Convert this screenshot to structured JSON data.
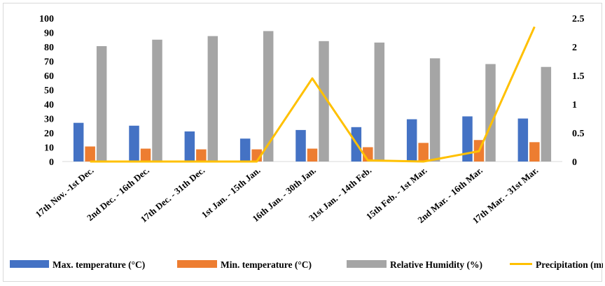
{
  "chart_data": {
    "type": "bar",
    "categories": [
      "17th Nov. -1st Dec.",
      "2nd Dec. - 16th Dec.",
      "17th Dec. - 31th Dec.",
      "1st Jan. - 15th Jan.",
      "16th Jan. - 30th Jan.",
      "31st Jan. - 14th Feb.",
      "15th Feb. - 1st Mar.",
      "2nd Mar. - 16th Mar.",
      "17th Mar. - 31st Mar."
    ],
    "series": [
      {
        "name": "Max. temperature (°C)",
        "type": "bar",
        "axis": "left",
        "color": "#4472c4",
        "values": [
          27,
          25,
          21,
          16,
          22,
          24,
          29.5,
          31.5,
          30
        ]
      },
      {
        "name": "Min. temperature (°C)",
        "type": "bar",
        "axis": "left",
        "color": "#ed7d31",
        "values": [
          10.5,
          9,
          8.5,
          8.5,
          9,
          10,
          13,
          15,
          13.5
        ]
      },
      {
        "name": "Relative Humidity (%)",
        "type": "bar",
        "axis": "left",
        "color": "#a5a5a5",
        "values": [
          80.5,
          85,
          87.5,
          91,
          84,
          83,
          72,
          68,
          66
        ]
      },
      {
        "name": "Precipitation (mm)",
        "type": "line",
        "axis": "right",
        "color": "#ffc000",
        "values": [
          0,
          0,
          0,
          0,
          1.45,
          0.02,
          0,
          0.18,
          2.35
        ]
      }
    ],
    "y_left": {
      "min": 0,
      "max": 100,
      "step": 10,
      "ticks": [
        "0",
        "10",
        "20",
        "30",
        "40",
        "50",
        "60",
        "70",
        "80",
        "90",
        "100"
      ]
    },
    "y_right": {
      "min": 0,
      "max": 2.5,
      "step": 0.5,
      "ticks": [
        "0",
        "0.5",
        "1",
        "1.5",
        "2",
        "2.5"
      ]
    },
    "legend": "bottom",
    "grid": false
  }
}
